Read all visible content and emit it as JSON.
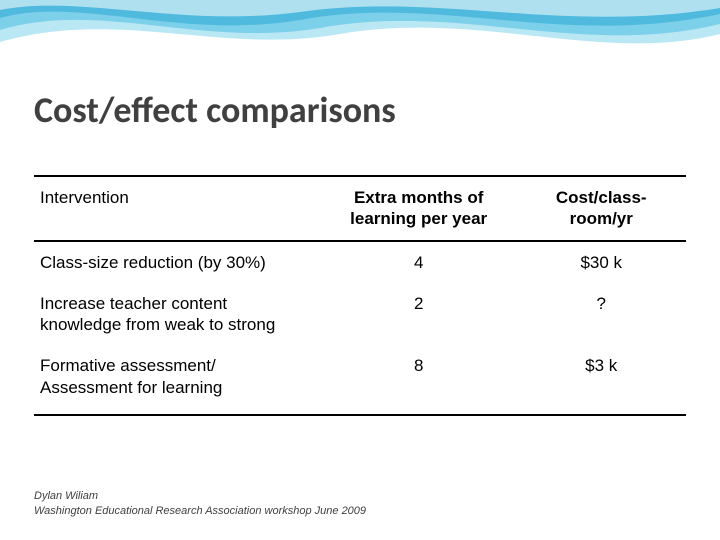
{
  "decor": {
    "wave_back": "#aee3f2",
    "wave_mid": "#62c6e4",
    "wave_front": "#2aa8d5",
    "wave_highlight": "#ffffff"
  },
  "title": {
    "text": "Cost/effect comparisons",
    "color": "#404040",
    "fontsize": 36,
    "weight": 700
  },
  "table": {
    "columns": [
      {
        "label": "Intervention",
        "align": "left",
        "weight": 400
      },
      {
        "label": "Extra months of\nlearning per year",
        "align": "center",
        "weight": 700
      },
      {
        "label": "Cost/class-\nroom/yr",
        "align": "center",
        "weight": 700
      }
    ],
    "rows": [
      {
        "intervention": "Class-size reduction (by 30%)",
        "months": "4",
        "cost": "$30 k"
      },
      {
        "intervention": "Increase teacher content\nknowledge from weak to strong",
        "months": "2",
        "cost": "?"
      },
      {
        "intervention": "Formative assessment/\nAssessment for learning",
        "months": "8",
        "cost": "$3 k"
      }
    ],
    "border_color": "#000000",
    "fontsize": 17,
    "col_widths_pct": [
      44,
      30,
      26
    ]
  },
  "footer": {
    "line1": "Dylan Wiliam",
    "line2": "Washington Educational Research Association workshop  June 2009",
    "fontsize": 11,
    "color": "#404040",
    "style": "italic"
  }
}
